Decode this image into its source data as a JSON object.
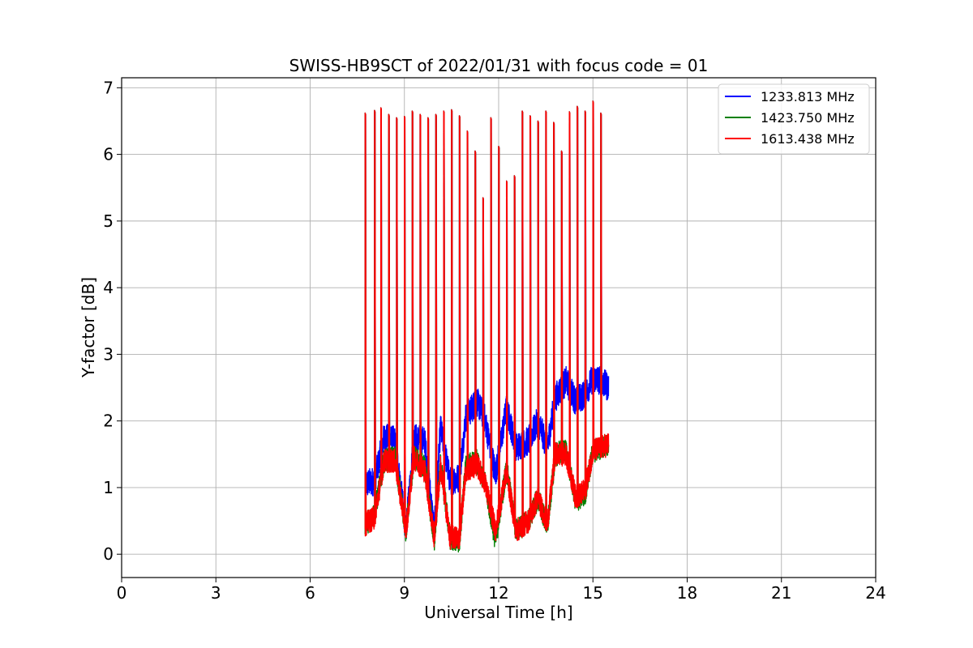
{
  "chart_data": {
    "type": "line",
    "title": "SWISS-HB9SCT of 2022/01/31 with focus code = 01",
    "xlabel": "Universal Time [h]",
    "ylabel": "Y-factor [dB]",
    "xlim": [
      0,
      24
    ],
    "ylim": [
      -0.35,
      7.15
    ],
    "xticks": [
      0,
      3,
      6,
      9,
      12,
      15,
      18,
      21,
      24
    ],
    "xtick_labels": [
      "0",
      "3",
      "6",
      "9",
      "12",
      "15",
      "18",
      "21",
      "24"
    ],
    "yticks": [
      0,
      1,
      2,
      3,
      4,
      5,
      6,
      7
    ],
    "ytick_labels": [
      "0",
      "1",
      "2",
      "3",
      "4",
      "5",
      "6",
      "7"
    ],
    "grid": true,
    "legend_position": "top-right",
    "series": [
      {
        "name": "1233.813 MHz",
        "color": "#0000ff",
        "baseline": [
          [
            7.75,
            1.05
          ],
          [
            8.05,
            1.1
          ],
          [
            8.35,
            1.75
          ],
          [
            8.7,
            1.7
          ],
          [
            9.05,
            0.35
          ],
          [
            9.3,
            1.75
          ],
          [
            9.65,
            1.7
          ],
          [
            9.95,
            0.35
          ],
          [
            10.15,
            1.9
          ],
          [
            10.45,
            1.1
          ],
          [
            10.75,
            1.15
          ],
          [
            10.95,
            2.05
          ],
          [
            11.3,
            2.3
          ],
          [
            11.55,
            2.05
          ],
          [
            11.9,
            1.2
          ],
          [
            12.25,
            2.2
          ],
          [
            12.55,
            1.6
          ],
          [
            12.95,
            1.7
          ],
          [
            13.25,
            2.0
          ],
          [
            13.55,
            1.6
          ],
          [
            13.8,
            2.35
          ],
          [
            14.15,
            2.6
          ],
          [
            14.45,
            2.3
          ],
          [
            14.75,
            2.4
          ],
          [
            15.0,
            2.65
          ],
          [
            15.25,
            2.6
          ],
          [
            15.5,
            2.5
          ]
        ]
      },
      {
        "name": "1423.750 MHz",
        "color": "#008000",
        "baseline": [
          [
            7.75,
            0.45
          ],
          [
            8.05,
            0.6
          ],
          [
            8.35,
            1.4
          ],
          [
            8.7,
            1.45
          ],
          [
            9.05,
            0.35
          ],
          [
            9.3,
            1.45
          ],
          [
            9.65,
            1.3
          ],
          [
            9.95,
            0.2
          ],
          [
            10.15,
            1.35
          ],
          [
            10.45,
            0.25
          ],
          [
            10.75,
            0.2
          ],
          [
            10.95,
            1.3
          ],
          [
            11.3,
            1.4
          ],
          [
            11.55,
            1.1
          ],
          [
            11.9,
            0.2
          ],
          [
            12.25,
            1.3
          ],
          [
            12.55,
            0.35
          ],
          [
            12.95,
            0.5
          ],
          [
            13.25,
            0.85
          ],
          [
            13.55,
            0.4
          ],
          [
            13.8,
            1.5
          ],
          [
            14.15,
            1.55
          ],
          [
            14.45,
            0.8
          ],
          [
            14.75,
            0.9
          ],
          [
            15.0,
            1.55
          ],
          [
            15.25,
            1.6
          ],
          [
            15.5,
            1.65
          ]
        ]
      },
      {
        "name": "1613.438 MHz",
        "color": "#ff0000",
        "baseline": [
          [
            7.75,
            0.45
          ],
          [
            8.05,
            0.55
          ],
          [
            8.35,
            1.4
          ],
          [
            8.7,
            1.4
          ],
          [
            9.05,
            0.35
          ],
          [
            9.3,
            1.45
          ],
          [
            9.65,
            1.25
          ],
          [
            9.95,
            0.25
          ],
          [
            10.15,
            1.3
          ],
          [
            10.45,
            0.25
          ],
          [
            10.75,
            0.25
          ],
          [
            10.95,
            1.25
          ],
          [
            11.3,
            1.35
          ],
          [
            11.55,
            1.1
          ],
          [
            11.9,
            0.35
          ],
          [
            12.25,
            1.25
          ],
          [
            12.55,
            0.35
          ],
          [
            12.95,
            0.5
          ],
          [
            13.25,
            0.85
          ],
          [
            13.55,
            0.45
          ],
          [
            13.8,
            1.5
          ],
          [
            14.15,
            1.5
          ],
          [
            14.45,
            0.85
          ],
          [
            14.75,
            0.95
          ],
          [
            15.0,
            1.55
          ],
          [
            15.25,
            1.6
          ],
          [
            15.5,
            1.65
          ]
        ]
      }
    ],
    "calibration_spikes": [
      [
        7.75,
        6.62
      ],
      [
        8.05,
        6.66
      ],
      [
        8.25,
        6.7
      ],
      [
        8.5,
        6.6
      ],
      [
        8.75,
        6.55
      ],
      [
        9.0,
        6.57
      ],
      [
        9.25,
        6.65
      ],
      [
        9.5,
        6.6
      ],
      [
        9.75,
        6.55
      ],
      [
        10.0,
        6.6
      ],
      [
        10.25,
        6.65
      ],
      [
        10.5,
        6.67
      ],
      [
        10.75,
        6.58
      ],
      [
        11.0,
        6.35
      ],
      [
        11.25,
        6.05
      ],
      [
        11.5,
        5.35
      ],
      [
        11.75,
        6.55
      ],
      [
        12.0,
        6.12
      ],
      [
        12.25,
        5.6
      ],
      [
        12.5,
        5.68
      ],
      [
        12.75,
        6.65
      ],
      [
        13.0,
        6.58
      ],
      [
        13.25,
        6.5
      ],
      [
        13.5,
        6.65
      ],
      [
        13.75,
        6.48
      ],
      [
        14.0,
        6.05
      ],
      [
        14.25,
        6.64
      ],
      [
        14.5,
        6.72
      ],
      [
        14.75,
        6.65
      ],
      [
        15.0,
        6.8
      ],
      [
        15.25,
        6.62
      ]
    ]
  }
}
